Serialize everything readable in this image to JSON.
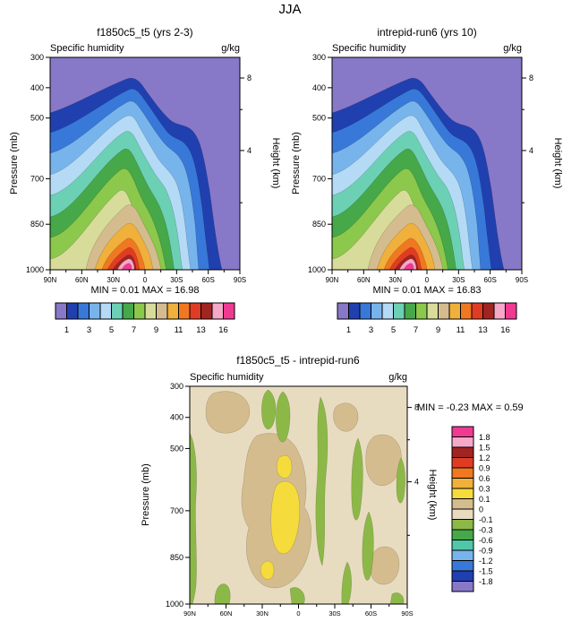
{
  "season": "JJA",
  "panels": [
    {
      "title": "f1850c5_t5 (yrs 2-3)",
      "field_label": "Specific humidity",
      "units": "g/kg",
      "minmax": "MIN =  0.01  MAX =  16.98"
    },
    {
      "title": "intrepid-run6 (yrs 10)",
      "field_label": "Specific humidity",
      "units": "g/kg",
      "minmax": "MIN =  0.01  MAX =  16.83"
    },
    {
      "title": "f1850c5_t5 - intrepid-run6",
      "field_label": "Specific humidity",
      "units": "g/kg",
      "minmax": "MIN = -0.23  MAX =   0.59"
    }
  ],
  "axes": {
    "y_label": "Pressure (mb)",
    "y_ticks": [
      "300",
      "400",
      "500",
      "700",
      "850",
      "1000"
    ],
    "y_tick_pressures": [
      300,
      400,
      500,
      700,
      850,
      1000
    ],
    "y2_label": "Height (km)",
    "y2_ticks": [
      {
        "label": "8",
        "p": 368
      },
      {
        "label": "4",
        "p": 607
      }
    ],
    "y2_minor_pressures": [
      472,
      779
    ],
    "x_ticks": [
      "90N",
      "60N",
      "30N",
      "0",
      "30S",
      "60S",
      "90S"
    ]
  },
  "top_colorbar": {
    "labels": [
      "1",
      "3",
      "5",
      "7",
      "9",
      "11",
      "13",
      "16"
    ]
  },
  "diff_colorbar": {
    "labels": [
      "1.8",
      "1.5",
      "1.2",
      "0.9",
      "0.6",
      "0.3",
      "0.1",
      "0",
      "-0.1",
      "-0.3",
      "-0.6",
      "-0.9",
      "-1.2",
      "-1.5",
      "-1.8"
    ]
  },
  "chart_data": [
    {
      "type": "heatmap",
      "subtype": "filled-contour latitude-pressure cross-section",
      "title": "f1850c5_t5 (yrs 2-3)",
      "season": "JJA",
      "variable": "Specific humidity",
      "units": "g/kg",
      "xlabel": "",
      "x_ticks": [
        "90N",
        "60N",
        "30N",
        "0",
        "30S",
        "60S",
        "90S"
      ],
      "y_axis": {
        "label": "Pressure (mb)",
        "range": [
          300,
          1000
        ],
        "ticks": [
          300,
          400,
          500,
          700,
          850,
          1000
        ]
      },
      "y2_axis": {
        "label": "Height (km)",
        "ticks": [
          8,
          4
        ]
      },
      "min": 0.01,
      "max": 16.98,
      "contour_levels": [
        1,
        2,
        3,
        4,
        5,
        6,
        7,
        8,
        9,
        10,
        11,
        12,
        13,
        14,
        16
      ],
      "colorbar_labels": [
        "1",
        "3",
        "5",
        "7",
        "9",
        "11",
        "13",
        "16"
      ],
      "colormap": [
        "#8878c8",
        "#2040b0",
        "#3878d8",
        "#78b4ec",
        "#b4daf6",
        "#6cd0b4",
        "#46a848",
        "#8cc84c",
        "#d8dc9a",
        "#d4bc8e",
        "#f0b03c",
        "#f07820",
        "#e03c24",
        "#a02420",
        "#f5a8c8",
        "#f03a92"
      ],
      "pattern": "Maximum ~17 g/kg near the surface around 15N, decreasing upward (<1 g/kg above ~400 mb) and poleward; moist dome slopes down toward the south, reaching the surface near 70S"
    },
    {
      "type": "heatmap",
      "subtype": "filled-contour latitude-pressure cross-section",
      "title": "intrepid-run6 (yrs 10)",
      "season": "JJA",
      "variable": "Specific humidity",
      "units": "g/kg",
      "xlabel": "",
      "x_ticks": [
        "90N",
        "60N",
        "30N",
        "0",
        "30S",
        "60S",
        "90S"
      ],
      "y_axis": {
        "label": "Pressure (mb)",
        "range": [
          300,
          1000
        ],
        "ticks": [
          300,
          400,
          500,
          700,
          850,
          1000
        ]
      },
      "y2_axis": {
        "label": "Height (km)",
        "ticks": [
          8,
          4
        ]
      },
      "min": 0.01,
      "max": 16.83,
      "contour_levels": [
        1,
        2,
        3,
        4,
        5,
        6,
        7,
        8,
        9,
        10,
        11,
        12,
        13,
        14,
        16
      ],
      "colorbar_labels": [
        "1",
        "3",
        "5",
        "7",
        "9",
        "11",
        "13",
        "16"
      ],
      "colormap": [
        "#8878c8",
        "#2040b0",
        "#3878d8",
        "#78b4ec",
        "#b4daf6",
        "#6cd0b4",
        "#46a848",
        "#8cc84c",
        "#d8dc9a",
        "#d4bc8e",
        "#f0b03c",
        "#f07820",
        "#e03c24",
        "#a02420",
        "#f5a8c8",
        "#f03a92"
      ],
      "pattern": "Nearly identical structure to f1850c5_t5: surface maximum ~16.8 g/kg near 15N decreasing upward and poleward"
    },
    {
      "type": "heatmap",
      "subtype": "filled-contour latitude-pressure difference",
      "title": "f1850c5_t5 - intrepid-run6",
      "season": "JJA",
      "variable": "Specific humidity",
      "units": "g/kg",
      "xlabel": "",
      "x_ticks": [
        "90N",
        "60N",
        "30N",
        "0",
        "30S",
        "60S",
        "90S"
      ],
      "y_axis": {
        "label": "Pressure (mb)",
        "range": [
          300,
          1000
        ],
        "ticks": [
          300,
          400,
          500,
          700,
          850,
          1000
        ]
      },
      "y2_axis": {
        "label": "Height (km)",
        "ticks": [
          8,
          4
        ]
      },
      "min": -0.23,
      "max": 0.59,
      "contour_levels": [
        1.8,
        1.5,
        1.2,
        0.9,
        0.6,
        0.3,
        0.1,
        0,
        -0.1,
        -0.3,
        -0.6,
        -0.9,
        -1.2,
        -1.5,
        -1.8
      ],
      "colormap_order": "high-to-low",
      "colormap": [
        "#f03a92",
        "#f5a8c8",
        "#a02420",
        "#e03c24",
        "#f07820",
        "#f0b03c",
        "#f5dc3c",
        "#d4bc8e",
        "#e8dcc0",
        "#8cb848",
        "#46a848",
        "#50c8a8",
        "#78b4ec",
        "#3878d8",
        "#2040b0",
        "#8878c8"
      ],
      "pattern": "Differences mostly between -0.1 and 0.1 g/kg; positive pocket 0.1-0.3 g/kg near 0-15N around 550-800 mb; scattered -0.3 to -0.1 g/kg patches at high northern latitudes, near the tropopause and in the southern mid-latitudes"
    }
  ]
}
